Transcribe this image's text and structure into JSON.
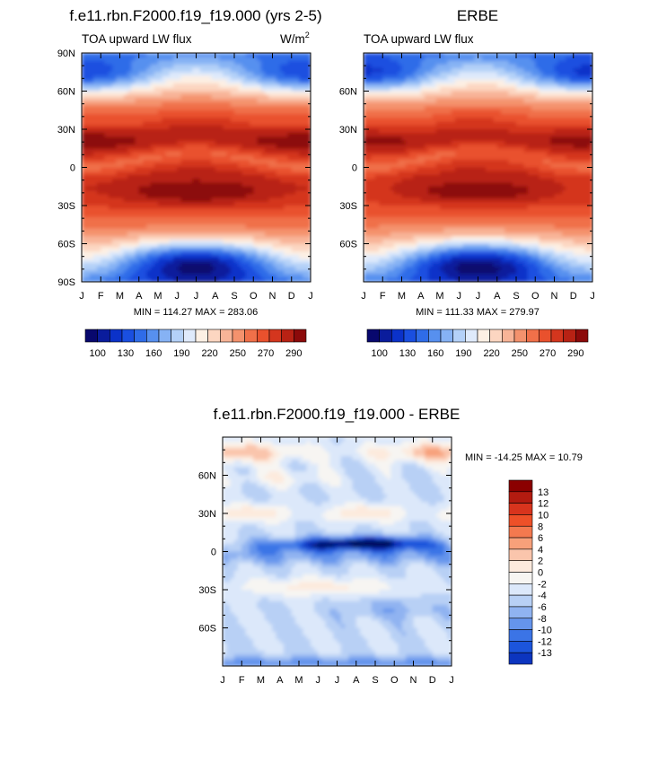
{
  "page": {
    "title_left": "f.e11.rbn.F2000.f19_f19.000 (yrs 2-5)",
    "title_right": "ERBE",
    "title_bottom": "f.e11.rbn.F2000.f19_f19.000 - ERBE"
  },
  "chart_data": [
    {
      "id": "model",
      "type": "heatmap",
      "title": "f.e11.rbn.F2000.f19_f19.000 (yrs 2-5)",
      "subtitle_left": "TOA upward LW flux",
      "units_base": "W/m",
      "units_exp": "2",
      "x_ticks": [
        "J",
        "F",
        "M",
        "A",
        "M",
        "J",
        "J",
        "A",
        "S",
        "O",
        "N",
        "D",
        "J"
      ],
      "y_ticks": [
        "90N",
        "60N",
        "30N",
        "0",
        "30S",
        "60S",
        "90S"
      ],
      "y_tick_values": [
        90,
        60,
        30,
        0,
        -30,
        -60,
        -90
      ],
      "ylim": [
        -90,
        90
      ],
      "minmax_text": "MIN = 114.27 MAX = 283.06",
      "min": 114.27,
      "max": 283.06,
      "colorbar_labels": [
        "100",
        "130",
        "160",
        "190",
        "220",
        "250",
        "270",
        "290"
      ],
      "colorbar_levels": [
        100,
        110,
        120,
        130,
        140,
        150,
        160,
        170,
        180,
        190,
        200,
        210,
        220,
        230,
        240,
        250,
        260,
        270,
        280,
        290,
        300
      ]
    },
    {
      "id": "erbe",
      "type": "heatmap",
      "title": "ERBE",
      "subtitle_left": "TOA upward LW flux",
      "x_ticks": [
        "J",
        "F",
        "M",
        "A",
        "M",
        "J",
        "J",
        "A",
        "S",
        "O",
        "N",
        "D",
        "J"
      ],
      "y_ticks": [
        "60N",
        "30N",
        "0",
        "30S",
        "60S"
      ],
      "y_tick_values": [
        60,
        30,
        0,
        -30,
        -60
      ],
      "ylim": [
        -90,
        90
      ],
      "minmax_text": "MIN = 111.33 MAX = 279.97",
      "min": 111.33,
      "max": 279.97,
      "colorbar_labels": [
        "100",
        "130",
        "160",
        "190",
        "220",
        "250",
        "270",
        "290"
      ]
    },
    {
      "id": "diff",
      "type": "heatmap",
      "title": "f.e11.rbn.F2000.f19_f19.000 - ERBE",
      "x_ticks": [
        "J",
        "F",
        "M",
        "A",
        "M",
        "J",
        "J",
        "A",
        "S",
        "O",
        "N",
        "D",
        "J"
      ],
      "y_ticks": [
        "60N",
        "30N",
        "0",
        "30S",
        "60S"
      ],
      "y_tick_values": [
        60,
        30,
        0,
        -30,
        -60
      ],
      "ylim": [
        -90,
        90
      ],
      "minmax_text": "MIN = -14.25 MAX =  10.79",
      "min": -14.25,
      "max": 10.79,
      "colorbar_labels": [
        "13",
        "12",
        "10",
        "8",
        "6",
        "4",
        "2",
        "0",
        "-2",
        "-4",
        "-6",
        "-8",
        "-10",
        "-12",
        "-13"
      ]
    }
  ],
  "colors": {
    "abs_scale": [
      "#08086e",
      "#0a1c9c",
      "#0b32c9",
      "#1a4fe0",
      "#2f6ce8",
      "#5790ef",
      "#86b2f4",
      "#b4d1f8",
      "#dfeafb",
      "#fdf0e4",
      "#fcd6c1",
      "#f8b497",
      "#f4926d",
      "#f07049",
      "#e9512d",
      "#d4361e",
      "#b82214",
      "#8c0a0a"
    ],
    "diff_scale": [
      "#8b0000",
      "#b31b10",
      "#d8341d",
      "#ee5028",
      "#f4794f",
      "#f7a07a",
      "#fac5ac",
      "#fdeadd",
      "#f7f5f2",
      "#dce8fa",
      "#b8d0f5",
      "#90b3f1",
      "#6594ec",
      "#3b74e6",
      "#1c55dc",
      "#0c35bf",
      "#061c93",
      "#02085e"
    ]
  }
}
